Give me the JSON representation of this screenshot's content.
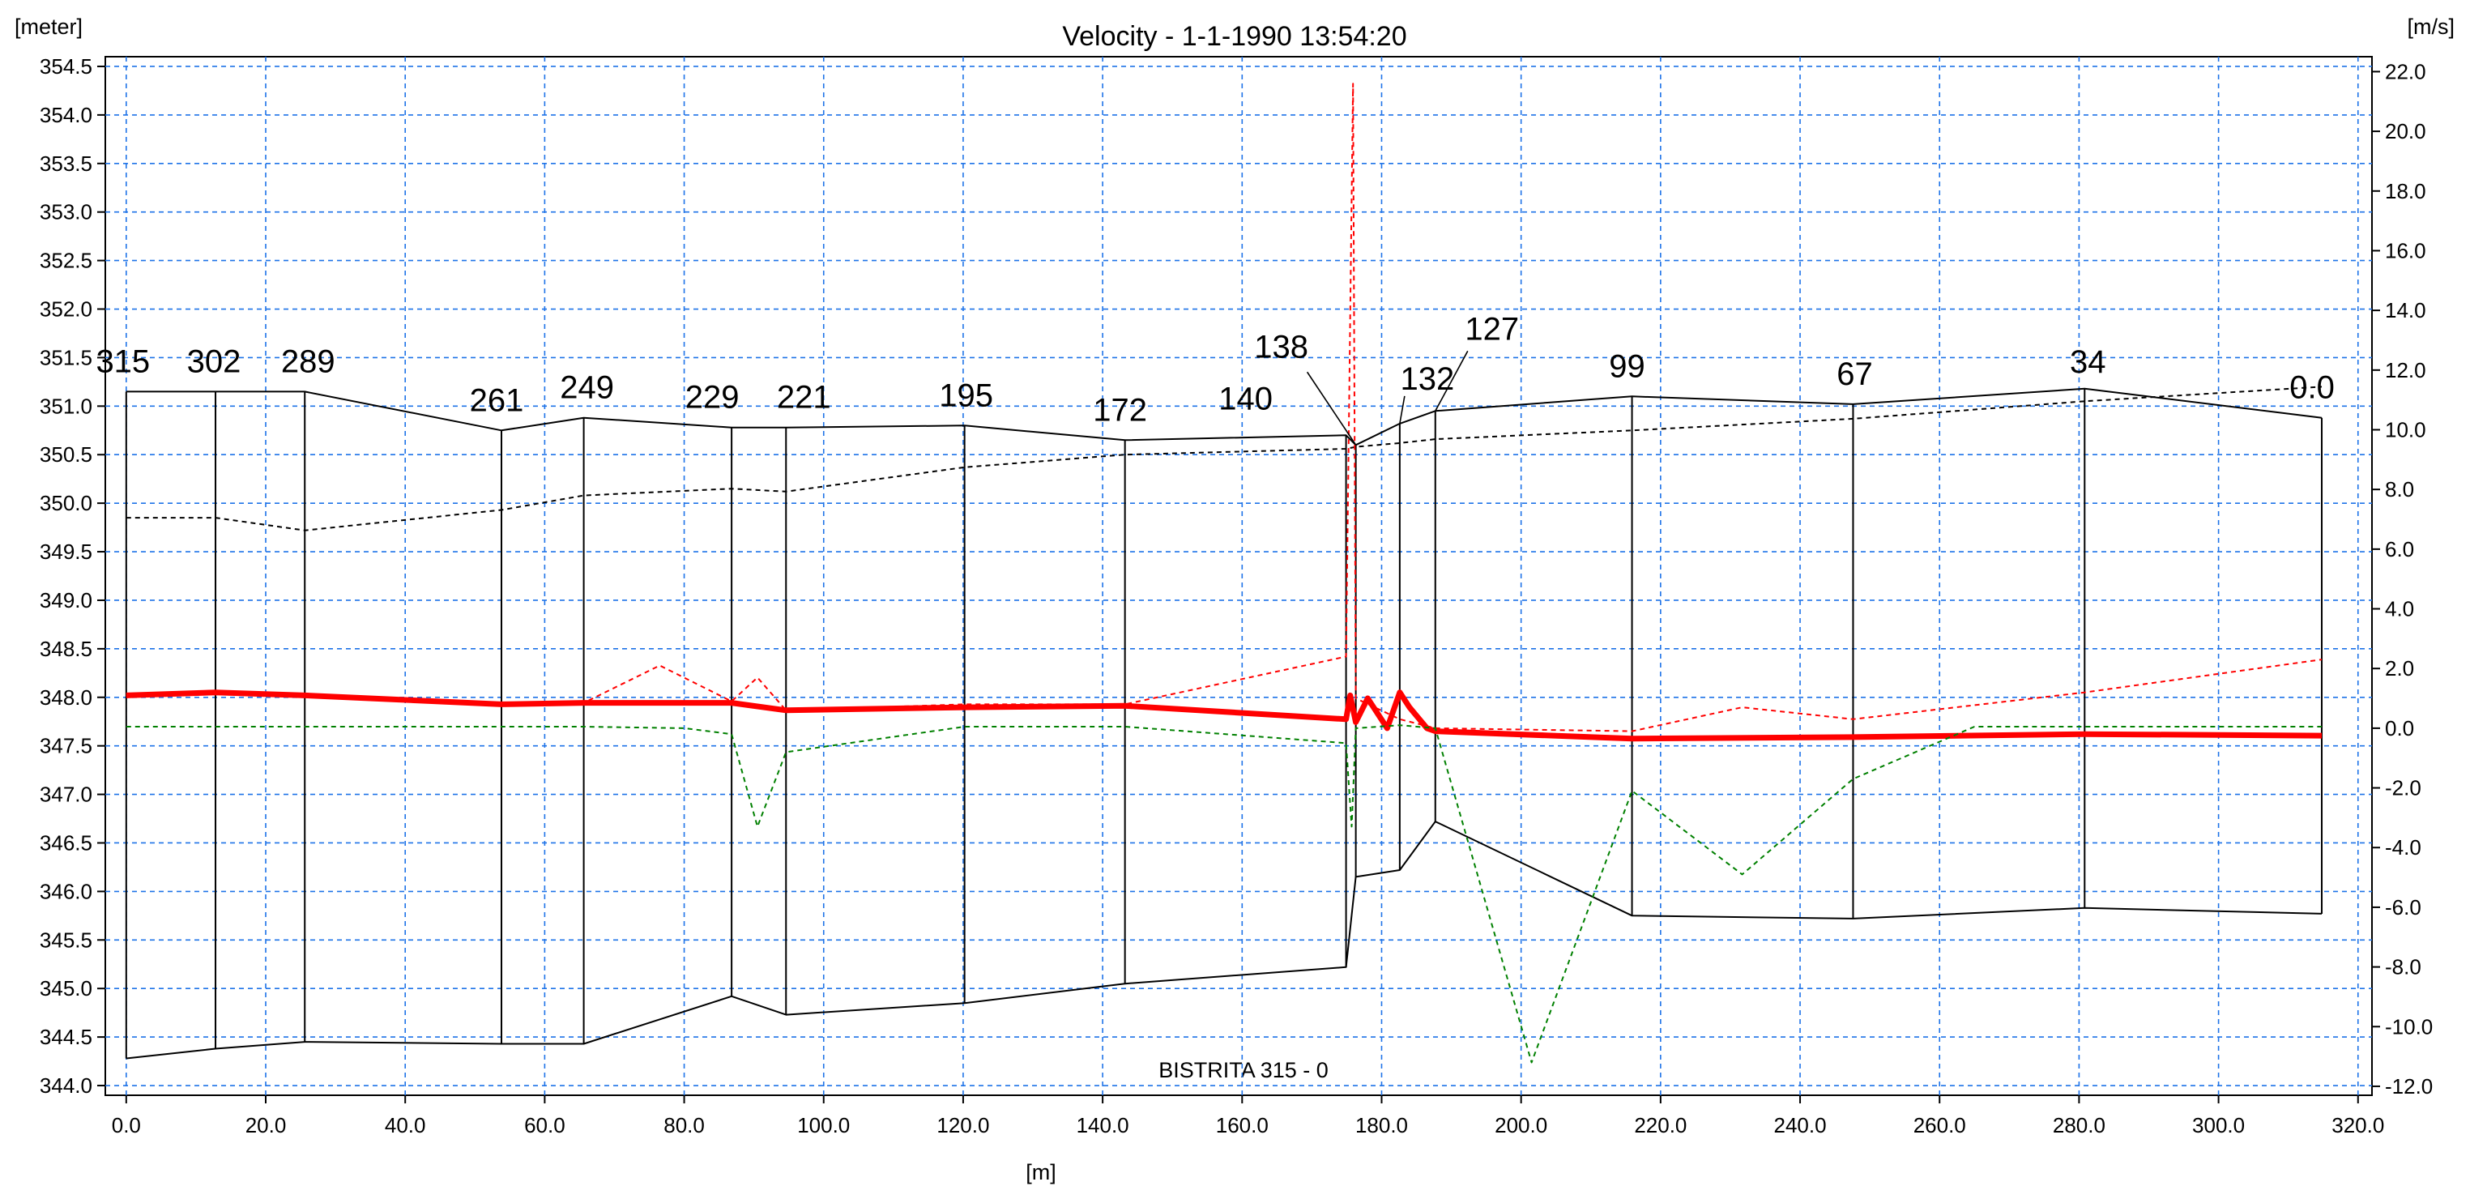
{
  "chart_data": {
    "type": "line",
    "title": "Velocity - 1-1-1990 13:54:20",
    "left_axis_unit": "[meter]",
    "right_axis_unit": "[m/s]",
    "x_axis_unit": "[m]",
    "river_label": "BISTRITA  315 - 0",
    "xlim": [
      -3,
      322
    ],
    "ylim_left": [
      343.9,
      354.6
    ],
    "ylim_right": [
      -12.3,
      22.5
    ],
    "x_ticks": [
      "0.0",
      "20.0",
      "40.0",
      "60.0",
      "80.0",
      "100.0",
      "120.0",
      "140.0",
      "160.0",
      "180.0",
      "200.0",
      "220.0",
      "240.0",
      "260.0",
      "280.0",
      "300.0",
      "320.0"
    ],
    "y_left_ticks": [
      "344.0",
      "344.5",
      "345.0",
      "345.5",
      "346.0",
      "346.5",
      "347.0",
      "347.5",
      "348.0",
      "348.5",
      "349.0",
      "349.5",
      "350.0",
      "350.5",
      "351.0",
      "351.5",
      "352.0",
      "352.5",
      "353.0",
      "353.5",
      "354.0",
      "354.5"
    ],
    "y_right_ticks": [
      "-12.0",
      "-10.0",
      "-8.0",
      "-6.0",
      "-4.0",
      "-2.0",
      "0.0",
      "2.0",
      "4.0",
      "6.0",
      "8.0",
      "10.0",
      "12.0",
      "14.0",
      "16.0",
      "18.0",
      "20.0",
      "22.0"
    ],
    "grid": true,
    "colors": {
      "grid": "#1e73e8",
      "profile": "#000000",
      "velocity": "#ff0000",
      "max_velocity": "#ff0000",
      "min_velocity": "#008000"
    },
    "cross_sections": [
      {
        "label": "315",
        "x": 0,
        "top": 351.15,
        "bottom": 344.28
      },
      {
        "label": "302",
        "x": 12.8,
        "top": 351.15,
        "bottom": 344.38
      },
      {
        "label": "289",
        "x": 25.6,
        "top": 351.15,
        "bottom": 344.45
      },
      {
        "label": "261",
        "x": 53.8,
        "top": 350.75,
        "bottom": 344.43
      },
      {
        "label": "249",
        "x": 65.6,
        "top": 350.88,
        "bottom": 344.43
      },
      {
        "label": "229",
        "x": 86.8,
        "top": 350.78,
        "bottom": 344.92
      },
      {
        "label": "221",
        "x": 94.6,
        "top": 350.78,
        "bottom": 344.73
      },
      {
        "label": "195",
        "x": 120.2,
        "top": 350.8,
        "bottom": 344.85
      },
      {
        "label": "172",
        "x": 143.2,
        "top": 350.65,
        "bottom": 345.05
      },
      {
        "label": "140",
        "x": 174.9,
        "top": 350.7,
        "bottom": 345.22
      },
      {
        "label": "138",
        "x": 176.3,
        "top": 350.6,
        "bottom": 346.15
      },
      {
        "label": "132",
        "x": 182.6,
        "top": 350.82,
        "bottom": 346.22
      },
      {
        "label": "127",
        "x": 187.7,
        "top": 350.95,
        "bottom": 346.72
      },
      {
        "label": "99",
        "x": 215.9,
        "top": 351.1,
        "bottom": 345.75
      },
      {
        "label": "67",
        "x": 247.6,
        "top": 351.02,
        "bottom": 345.72
      },
      {
        "label": "34",
        "x": 280.8,
        "top": 351.18,
        "bottom": 345.83
      },
      {
        "label": "0.0",
        "x": 314.8,
        "top": 350.88,
        "bottom": 345.77
      }
    ],
    "series": [
      {
        "axis": "left",
        "style": "solid",
        "x": [
          0,
          12.8,
          25.6,
          53.8,
          65.6,
          86.8,
          94.6,
          120.2,
          143.2,
          174.9,
          176.3,
          182.6,
          187.7,
          215.9,
          247.6,
          280.8,
          314.8
        ],
        "values": [
          351.15,
          351.15,
          351.15,
          350.75,
          350.88,
          350.78,
          350.78,
          350.8,
          350.65,
          350.7,
          350.6,
          350.82,
          350.95,
          351.1,
          351.02,
          351.18,
          350.88
        ]
      },
      {
        "axis": "left",
        "style": "solid",
        "x": [
          0,
          12.8,
          25.6,
          53.8,
          65.6,
          86.8,
          94.6,
          120.2,
          143.2,
          174.9,
          176.3,
          182.6,
          187.7,
          215.9,
          247.6,
          280.8,
          314.8
        ],
        "values": [
          344.28,
          344.38,
          344.45,
          344.43,
          344.43,
          344.92,
          344.73,
          344.85,
          345.05,
          345.22,
          346.15,
          346.22,
          346.72,
          345.75,
          345.72,
          345.83,
          345.77
        ]
      },
      {
        "axis": "left",
        "style": "dashed",
        "x": [
          0,
          12.8,
          25.6,
          53.8,
          65.6,
          86.8,
          94.6,
          120.2,
          143.2,
          174.9,
          176.3,
          182.6,
          187.7,
          215.9,
          247.6,
          280.8,
          314.8
        ],
        "values": [
          349.85,
          349.85,
          349.72,
          349.93,
          350.08,
          350.15,
          350.12,
          350.37,
          350.5,
          350.56,
          350.58,
          350.62,
          350.66,
          350.75,
          350.87,
          351.05,
          351.2
        ]
      },
      {
        "axis": "right",
        "style": "solid-thick",
        "x": [
          0,
          12.8,
          25.6,
          53.8,
          65.6,
          86.8,
          94.6,
          120.2,
          143.2,
          174.9,
          175.5,
          176.3,
          178.0,
          180.8,
          182.6,
          184.0,
          186.5,
          187.7,
          215.9,
          247.6,
          280.8,
          314.8
        ],
        "values": [
          1.1,
          1.2,
          1.1,
          0.8,
          0.85,
          0.85,
          0.6,
          0.7,
          0.75,
          0.3,
          1.1,
          0.2,
          1.0,
          0.0,
          1.2,
          0.7,
          0.0,
          -0.1,
          -0.35,
          -0.3,
          -0.2,
          -0.25
        ]
      },
      {
        "axis": "right",
        "style": "dashed",
        "x": [
          0,
          12.8,
          25.6,
          53.8,
          65.6,
          76.5,
          86.8,
          90.5,
          94.6,
          120.2,
          143.2,
          174.9,
          175.9,
          176.3,
          182.6,
          187.7,
          215.9,
          231.7,
          247.6,
          280.8,
          314.8
        ],
        "values": [
          1.1,
          1.2,
          1.1,
          0.8,
          0.85,
          2.1,
          0.9,
          1.7,
          0.6,
          0.8,
          0.8,
          2.4,
          21.6,
          1.0,
          0.3,
          0.0,
          -0.1,
          0.7,
          0.3,
          1.2,
          2.3
        ]
      },
      {
        "axis": "right",
        "style": "dashed",
        "x": [
          0,
          12.8,
          25.6,
          53.8,
          65.6,
          80.0,
          86.8,
          90.5,
          94.6,
          120.2,
          143.2,
          174.9,
          175.7,
          176.3,
          182.6,
          187.7,
          201.5,
          215.9,
          231.7,
          247.6,
          265.0,
          280.8,
          314.8
        ],
        "values": [
          0.05,
          0.05,
          0.05,
          0.05,
          0.05,
          0.0,
          -0.2,
          -3.3,
          -0.8,
          0.05,
          0.05,
          -0.5,
          -3.3,
          0.0,
          0.1,
          0.0,
          -11.2,
          -2.1,
          -4.9,
          -1.7,
          0.05,
          0.05,
          0.05
        ]
      }
    ]
  }
}
